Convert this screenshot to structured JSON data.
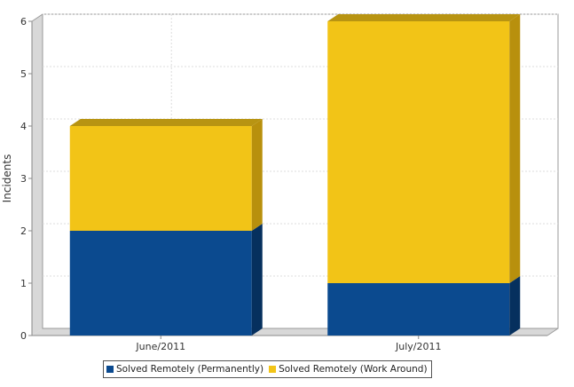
{
  "chart_data": {
    "type": "bar",
    "stacked": true,
    "three_d": true,
    "title": "",
    "xlabel": "",
    "ylabel": "Incidents",
    "ylim": [
      0,
      6
    ],
    "yticks": [
      0,
      1,
      2,
      3,
      4,
      5,
      6
    ],
    "grid": true,
    "legend_position": "bottom",
    "categories": [
      "June/2011",
      "July/2011"
    ],
    "series": [
      {
        "name": "Solved Remotely (Permanently)",
        "values": [
          2,
          1
        ],
        "color": "#0b4a8f",
        "side_color": "#06305e",
        "top_color": "#0b3f7a"
      },
      {
        "name": "Solved Remotely (Work Around)",
        "values": [
          2,
          5
        ],
        "color": "#f2c417",
        "side_color": "#b8900d",
        "top_color": "#b89412"
      }
    ]
  }
}
